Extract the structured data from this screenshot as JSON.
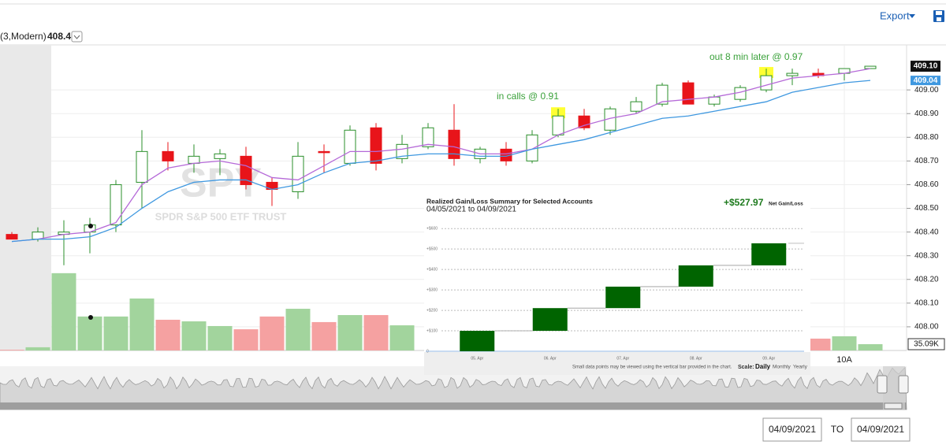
{
  "toolbar": {
    "export": "Export"
  },
  "header": {
    "study": "(3,Modern)",
    "price": "408.41"
  },
  "range": {
    "from": "04/09/2021",
    "to_label": "TO",
    "to": "04/09/2021"
  },
  "chart_data": [
    {
      "type": "candlestick",
      "watermark": "SPY",
      "subtitle": "SPDR S&P 500 ETF TRUST",
      "categories": [
        null,
        null,
        null,
        null,
        null,
        null,
        null,
        null,
        null,
        null,
        null,
        null,
        null,
        null,
        null,
        null,
        null,
        null,
        null,
        null,
        null,
        null,
        null,
        null,
        null,
        null,
        null,
        null,
        null,
        null,
        null,
        null,
        "10A",
        null
      ],
      "open": [
        408.39,
        408.37,
        408.39,
        408.4,
        408.43,
        408.61,
        408.74,
        408.69,
        408.71,
        408.72,
        408.61,
        408.57,
        408.74,
        408.69,
        408.84,
        408.71,
        408.76,
        408.83,
        408.71,
        408.75,
        408.7,
        408.81,
        408.89,
        408.83,
        408.91,
        408.94,
        409.03,
        408.94,
        408.96,
        409.0,
        409.06,
        409.07,
        409.07,
        409.09
      ],
      "high": [
        408.4,
        408.42,
        408.45,
        408.46,
        408.62,
        408.83,
        408.78,
        408.77,
        408.75,
        408.76,
        408.63,
        408.78,
        408.77,
        408.85,
        408.86,
        408.81,
        408.86,
        408.94,
        408.76,
        408.78,
        408.83,
        408.92,
        408.92,
        408.93,
        408.97,
        409.03,
        409.04,
        408.98,
        409.02,
        409.09,
        409.09,
        409.09,
        409.09,
        409.1
      ],
      "low": [
        408.37,
        408.36,
        408.26,
        408.31,
        408.4,
        408.5,
        408.66,
        408.65,
        408.64,
        408.58,
        408.51,
        408.54,
        408.65,
        408.68,
        408.66,
        408.69,
        408.75,
        408.68,
        408.69,
        408.68,
        408.69,
        408.8,
        408.83,
        408.81,
        408.9,
        408.93,
        408.94,
        408.93,
        408.95,
        408.99,
        409.02,
        409.05,
        409.04,
        409.09
      ],
      "close": [
        408.37,
        408.4,
        408.4,
        408.43,
        408.6,
        408.74,
        408.7,
        408.72,
        408.73,
        408.6,
        408.58,
        408.72,
        408.735,
        408.83,
        408.69,
        408.77,
        408.84,
        408.71,
        408.75,
        408.7,
        408.81,
        408.89,
        408.84,
        408.92,
        408.95,
        409.02,
        408.94,
        408.97,
        409.01,
        409.06,
        409.07,
        409.06,
        409.09,
        409.1
      ],
      "last_close_label": "409.10",
      "up_color": "#2b8f2b",
      "down_color": "#e8141a",
      "lines": [
        {
          "color": "#b569d8",
          "values": [
            408.36,
            408.37,
            408.39,
            408.4,
            408.44,
            408.6,
            408.67,
            408.69,
            408.7,
            408.68,
            408.63,
            408.62,
            408.68,
            408.74,
            408.74,
            408.75,
            408.77,
            408.76,
            408.73,
            408.73,
            408.75,
            408.81,
            408.85,
            408.88,
            408.9,
            408.95,
            408.96,
            408.97,
            408.99,
            409.02,
            409.05,
            409.06,
            409.07,
            409.09
          ]
        },
        {
          "color": "#3f98e0",
          "end_label": "409.04",
          "values": [
            408.36,
            408.37,
            408.37,
            408.38,
            408.42,
            408.5,
            408.57,
            408.61,
            408.62,
            408.62,
            408.58,
            408.6,
            408.65,
            408.69,
            408.7,
            408.72,
            408.73,
            408.73,
            408.72,
            408.72,
            408.75,
            408.77,
            408.79,
            408.82,
            408.85,
            408.88,
            408.89,
            408.91,
            408.93,
            408.95,
            408.99,
            409.01,
            409.03,
            409.04
          ]
        }
      ],
      "volume": [
        4,
        18,
        430,
        189,
        189,
        289,
        171,
        162,
        136,
        118,
        189,
        232,
        158,
        197,
        197,
        140,
        null,
        null,
        null,
        null,
        null,
        null,
        null,
        null,
        null,
        null,
        null,
        null,
        null,
        null,
        null,
        66,
        79,
        35.09
      ],
      "volume_end_label": "35.09K",
      "volume_lim": [
        0,
        460
      ],
      "volume_up_color": "#a2d49d",
      "volume_down_color": "#f5a1a1",
      "ylim": [
        407.9,
        409.19
      ],
      "yticks": [
        {
          "value": 408,
          "label": "408.00"
        },
        {
          "value": 408.1,
          "label": "408.10"
        },
        {
          "value": 408.2,
          "label": "408.20"
        },
        {
          "value": 408.3,
          "label": "408.30"
        },
        {
          "value": 408.4,
          "label": "408.40"
        },
        {
          "value": 408.5,
          "label": "408.50"
        },
        {
          "value": 408.6,
          "label": "408.60"
        },
        {
          "value": 408.7,
          "label": "408.70"
        },
        {
          "value": 408.8,
          "label": "408.80"
        },
        {
          "value": 408.9,
          "label": "408.90"
        },
        {
          "value": 409,
          "label": "409.00"
        }
      ],
      "grid": true,
      "annotations": [
        "in calls @ 0.91",
        "out 8 min later @ 0.97"
      ],
      "annotation_color": "#3aa13a"
    },
    {
      "type": "waterfall",
      "title": "Realized Gain/Loss Summary for Selected Accounts",
      "subtitle": "04/05/2021 to 04/09/2021",
      "total": {
        "value": 527.97,
        "label": "+$527.97"
      },
      "total_caption": "Net Gain/Loss",
      "categories": [
        "05. Apr",
        "06. Apr",
        "07. Apr",
        "08. Apr",
        "09. Apr"
      ],
      "values": [
        100,
        111,
        105,
        104,
        108
      ],
      "color": "#006400",
      "ylim": [
        0,
        620
      ],
      "yticks": [
        {
          "value": 0,
          "label": "0"
        },
        {
          "value": 100,
          "label": "+$100"
        },
        {
          "value": 200,
          "label": "+$200"
        },
        {
          "value": 300,
          "label": "+$300"
        },
        {
          "value": 400,
          "label": "+$400"
        },
        {
          "value": 500,
          "label": "+$500"
        },
        {
          "value": 600,
          "label": "+$600"
        }
      ],
      "grid": true,
      "footnote": "Small data points may be viewed using the vertical bar provided in the chart.",
      "scale_label": "Scale:",
      "scale_options": [
        "Daily",
        "Monthly",
        "Yearly"
      ]
    }
  ]
}
